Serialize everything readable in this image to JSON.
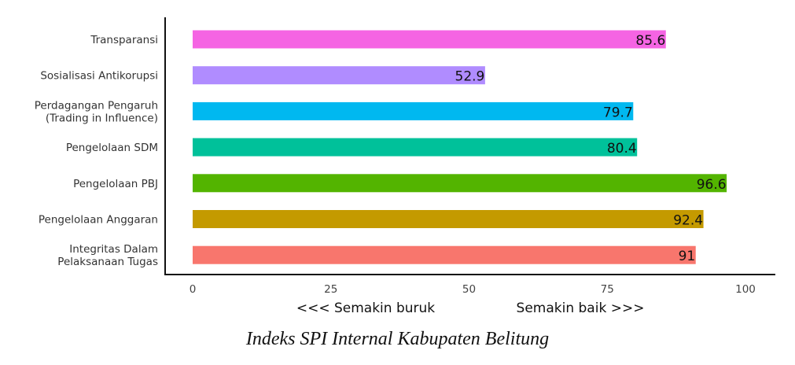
{
  "chart_data": {
    "type": "bar",
    "orientation": "horizontal",
    "categories": [
      [
        "Transparansi"
      ],
      [
        "Sosialisasi Antikorupsi"
      ],
      [
        "Perdagangan Pengaruh",
        "(Trading in Influence)"
      ],
      [
        "Pengelolaan SDM"
      ],
      [
        "Pengelolaan PBJ"
      ],
      [
        "Pengelolaan Anggaran"
      ],
      [
        "Integritas Dalam",
        "Pelaksanaan Tugas"
      ]
    ],
    "values": [
      85.6,
      52.9,
      79.7,
      80.4,
      96.6,
      92.4,
      91
    ],
    "value_labels": [
      "85.6",
      "52.9",
      "79.7",
      "80.4",
      "96.6",
      "92.4",
      "91"
    ],
    "colors": [
      "#f564e3",
      "#b08cff",
      "#00b8f0",
      "#00c19a",
      "#53b400",
      "#c49a00",
      "#f8766d"
    ],
    "xlim": [
      0,
      100
    ],
    "xticks": [
      0,
      25,
      50,
      75,
      100
    ],
    "xtick_labels": [
      "0",
      "25",
      "50",
      "75",
      "100"
    ],
    "annotations": {
      "left": "<<< Semakin buruk",
      "right": "Semakin baik >>>"
    },
    "grid": false
  },
  "caption": "Indeks SPI Internal Kabupaten Belitung"
}
